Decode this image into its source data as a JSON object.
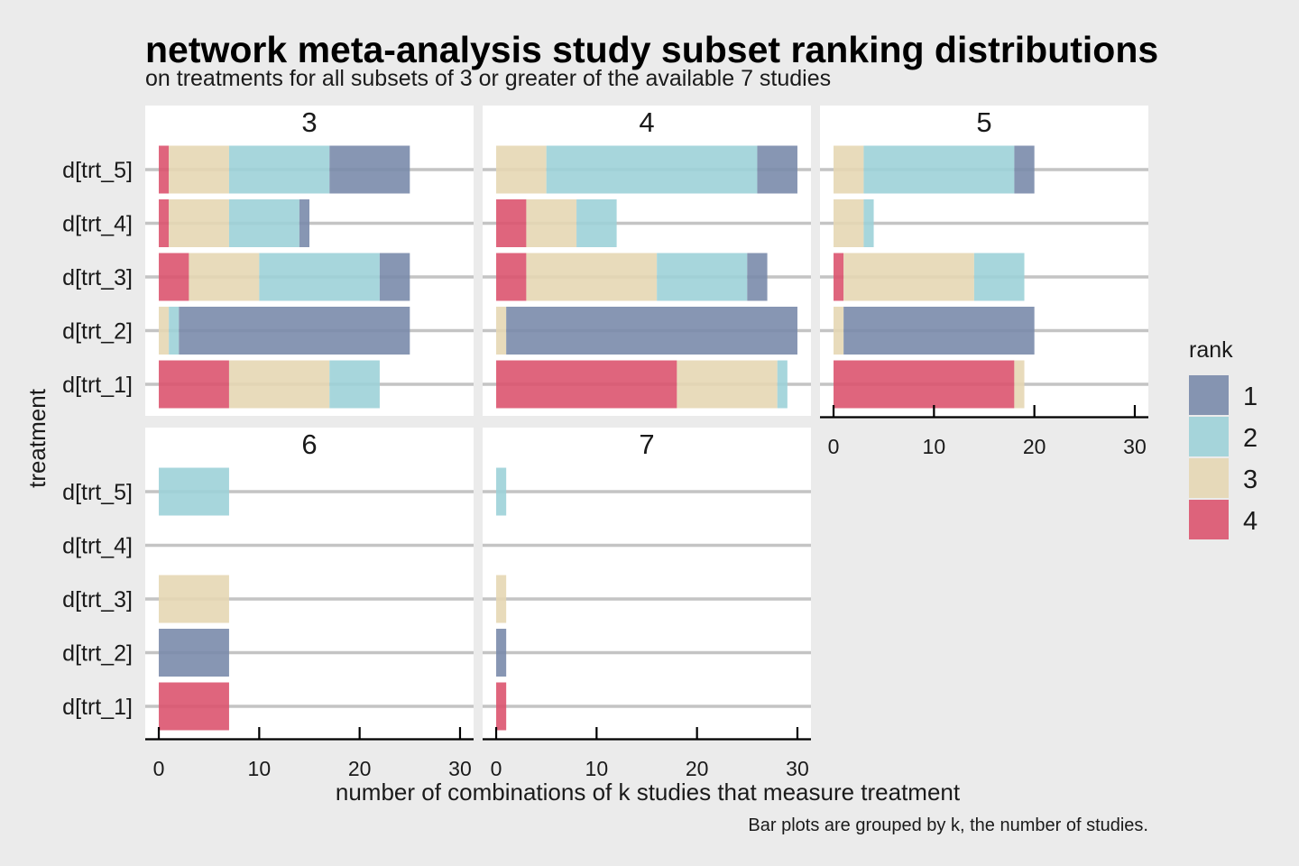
{
  "title": "network meta-analysis study subset ranking distributions",
  "subtitle": "on treatments for all subsets of 3 or greater of the available 7 studies",
  "caption": "Bar plots are grouped by k, the number of studies.",
  "chart_data": {
    "type": "bar",
    "orientation": "horizontal",
    "stacked": true,
    "facet_by": "k",
    "xlabel": "number of combinations of k studies that measure treatment",
    "ylabel": "treatment",
    "xlim": [
      0,
      30
    ],
    "xticks": [
      "0",
      "10",
      "20",
      "30"
    ],
    "categories": [
      "d[trt_1]",
      "d[trt_2]",
      "d[trt_3]",
      "d[trt_4]",
      "d[trt_5]"
    ],
    "legend": {
      "title": "rank",
      "placement": "right",
      "entries": [
        {
          "label": "1",
          "color": "#7a8bab"
        },
        {
          "label": "2",
          "color": "#9dd2d8"
        },
        {
          "label": "3",
          "color": "#e6d7b4"
        },
        {
          "label": "4",
          "color": "#dc546f"
        }
      ]
    },
    "stack_order": [
      "4",
      "3",
      "2",
      "1"
    ],
    "panels": [
      {
        "label": "3",
        "rows": [
          {
            "treatment": "d[trt_1]",
            "rank4": 7,
            "rank3": 10,
            "rank2": 5,
            "rank1": 0
          },
          {
            "treatment": "d[trt_2]",
            "rank4": 0,
            "rank3": 1,
            "rank2": 1,
            "rank1": 23
          },
          {
            "treatment": "d[trt_3]",
            "rank4": 3,
            "rank3": 7,
            "rank2": 12,
            "rank1": 3
          },
          {
            "treatment": "d[trt_4]",
            "rank4": 1,
            "rank3": 6,
            "rank2": 7,
            "rank1": 1
          },
          {
            "treatment": "d[trt_5]",
            "rank4": 1,
            "rank3": 6,
            "rank2": 10,
            "rank1": 8
          }
        ]
      },
      {
        "label": "4",
        "rows": [
          {
            "treatment": "d[trt_1]",
            "rank4": 18,
            "rank3": 10,
            "rank2": 1,
            "rank1": 0
          },
          {
            "treatment": "d[trt_2]",
            "rank4": 0,
            "rank3": 1,
            "rank2": 0,
            "rank1": 29
          },
          {
            "treatment": "d[trt_3]",
            "rank4": 3,
            "rank3": 13,
            "rank2": 9,
            "rank1": 2
          },
          {
            "treatment": "d[trt_4]",
            "rank4": 3,
            "rank3": 5,
            "rank2": 4,
            "rank1": 0
          },
          {
            "treatment": "d[trt_5]",
            "rank4": 0,
            "rank3": 5,
            "rank2": 21,
            "rank1": 4
          }
        ]
      },
      {
        "label": "5",
        "rows": [
          {
            "treatment": "d[trt_1]",
            "rank4": 18,
            "rank3": 1,
            "rank2": 0,
            "rank1": 0
          },
          {
            "treatment": "d[trt_2]",
            "rank4": 0,
            "rank3": 1,
            "rank2": 0,
            "rank1": 19
          },
          {
            "treatment": "d[trt_3]",
            "rank4": 1,
            "rank3": 13,
            "rank2": 5,
            "rank1": 0
          },
          {
            "treatment": "d[trt_4]",
            "rank4": 0,
            "rank3": 3,
            "rank2": 1,
            "rank1": 0
          },
          {
            "treatment": "d[trt_5]",
            "rank4": 0,
            "rank3": 3,
            "rank2": 15,
            "rank1": 2
          }
        ]
      },
      {
        "label": "6",
        "rows": [
          {
            "treatment": "d[trt_1]",
            "rank4": 7,
            "rank3": 0,
            "rank2": 0,
            "rank1": 0
          },
          {
            "treatment": "d[trt_2]",
            "rank4": 0,
            "rank3": 0,
            "rank2": 0,
            "rank1": 7
          },
          {
            "treatment": "d[trt_3]",
            "rank4": 0,
            "rank3": 7,
            "rank2": 0,
            "rank1": 0
          },
          {
            "treatment": "d[trt_4]",
            "rank4": 0,
            "rank3": 0,
            "rank2": 0,
            "rank1": 0
          },
          {
            "treatment": "d[trt_5]",
            "rank4": 0,
            "rank3": 0,
            "rank2": 7,
            "rank1": 0
          }
        ]
      },
      {
        "label": "7",
        "rows": [
          {
            "treatment": "d[trt_1]",
            "rank4": 1,
            "rank3": 0,
            "rank2": 0,
            "rank1": 0
          },
          {
            "treatment": "d[trt_2]",
            "rank4": 0,
            "rank3": 0,
            "rank2": 0,
            "rank1": 1
          },
          {
            "treatment": "d[trt_3]",
            "rank4": 0,
            "rank3": 1,
            "rank2": 0,
            "rank1": 0
          },
          {
            "treatment": "d[trt_4]",
            "rank4": 0,
            "rank3": 0,
            "rank2": 0,
            "rank1": 0
          },
          {
            "treatment": "d[trt_5]",
            "rank4": 0,
            "rank3": 0,
            "rank2": 1,
            "rank1": 0
          }
        ]
      }
    ]
  }
}
